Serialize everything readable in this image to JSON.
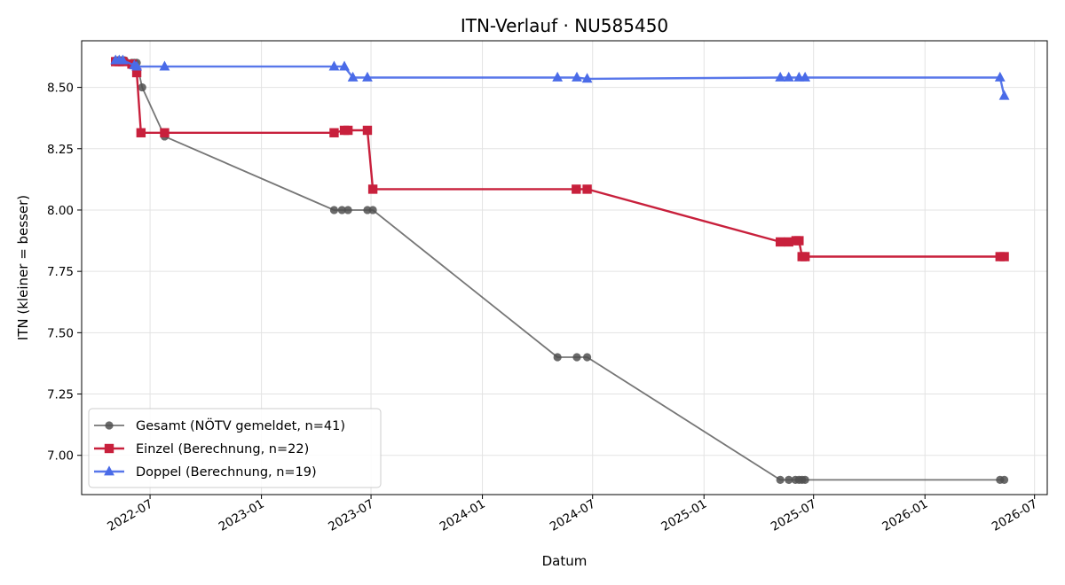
{
  "chart_data": {
    "type": "line",
    "title": "ITN-Verlauf · NU585450",
    "xlabel": "Datum",
    "ylabel": "ITN  (kleiner = besser)",
    "x_scale": "date",
    "xlim": [
      "2022-03-10",
      "2026-07-22"
    ],
    "ylim": [
      6.84,
      8.69
    ],
    "x_ticks": [
      {
        "date": "2022-07-01",
        "label": "2022-07"
      },
      {
        "date": "2023-01-01",
        "label": "2023-01"
      },
      {
        "date": "2023-07-01",
        "label": "2023-07"
      },
      {
        "date": "2024-01-01",
        "label": "2024-01"
      },
      {
        "date": "2024-07-01",
        "label": "2024-07"
      },
      {
        "date": "2025-01-01",
        "label": "2025-01"
      },
      {
        "date": "2025-07-01",
        "label": "2025-07"
      },
      {
        "date": "2026-01-01",
        "label": "2026-01"
      },
      {
        "date": "2026-07-01",
        "label": "2026-07"
      }
    ],
    "y_ticks": [
      {
        "value": 7.0,
        "label": "7.00"
      },
      {
        "value": 7.25,
        "label": "7.25"
      },
      {
        "value": 7.5,
        "label": "7.50"
      },
      {
        "value": 7.75,
        "label": "7.75"
      },
      {
        "value": 8.0,
        "label": "8.00"
      },
      {
        "value": 8.25,
        "label": "8.25"
      },
      {
        "value": 8.5,
        "label": "8.50"
      }
    ],
    "grid": true,
    "legend_position": "lower-left",
    "series": [
      {
        "name": "Gesamt (NÖTV gemeldet, n=41)",
        "color": "#505050",
        "marker": "circle",
        "points": [
          [
            "2022-05-05",
            8.61
          ],
          [
            "2022-05-08",
            8.61
          ],
          [
            "2022-05-11",
            8.61
          ],
          [
            "2022-05-14",
            8.61
          ],
          [
            "2022-05-17",
            8.61
          ],
          [
            "2022-05-20",
            8.61
          ],
          [
            "2022-06-01",
            8.6
          ],
          [
            "2022-06-05",
            8.6
          ],
          [
            "2022-06-09",
            8.6
          ],
          [
            "2022-06-18",
            8.5
          ],
          [
            "2022-07-25",
            8.3
          ],
          [
            "2023-05-01",
            8.0
          ],
          [
            "2023-05-14",
            8.0
          ],
          [
            "2023-05-24",
            8.0
          ],
          [
            "2023-06-25",
            8.0
          ],
          [
            "2023-07-04",
            8.0
          ],
          [
            "2024-05-04",
            7.4
          ],
          [
            "2024-06-05",
            7.4
          ],
          [
            "2024-06-22",
            7.4
          ],
          [
            "2025-05-07",
            6.9
          ],
          [
            "2025-05-21",
            6.9
          ],
          [
            "2025-06-01",
            6.9
          ],
          [
            "2025-06-07",
            6.9
          ],
          [
            "2025-06-12",
            6.9
          ],
          [
            "2025-06-17",
            6.9
          ],
          [
            "2026-05-05",
            6.9
          ],
          [
            "2026-05-12",
            6.9
          ]
        ]
      },
      {
        "name": "Einzel (Berechnung, n=22)",
        "color": "#c8203c",
        "marker": "square",
        "points": [
          [
            "2022-05-05",
            8.605
          ],
          [
            "2022-05-11",
            8.605
          ],
          [
            "2022-05-17",
            8.605
          ],
          [
            "2022-06-01",
            8.595
          ],
          [
            "2022-06-09",
            8.56
          ],
          [
            "2022-06-16",
            8.315
          ],
          [
            "2022-07-25",
            8.315
          ],
          [
            "2023-05-01",
            8.315
          ],
          [
            "2023-05-18",
            8.325
          ],
          [
            "2023-05-24",
            8.325
          ],
          [
            "2023-06-25",
            8.325
          ],
          [
            "2023-07-04",
            8.085
          ],
          [
            "2024-06-04",
            8.085
          ],
          [
            "2024-06-22",
            8.085
          ],
          [
            "2025-05-07",
            7.87
          ],
          [
            "2025-05-21",
            7.87
          ],
          [
            "2025-06-02",
            7.875
          ],
          [
            "2025-06-07",
            7.875
          ],
          [
            "2025-06-12",
            7.81
          ],
          [
            "2025-06-17",
            7.81
          ],
          [
            "2026-05-05",
            7.81
          ],
          [
            "2026-05-12",
            7.81
          ]
        ]
      },
      {
        "name": "Doppel (Berechnung, n=19)",
        "color": "#4a6be8",
        "marker": "triangle",
        "points": [
          [
            "2022-05-05",
            8.61
          ],
          [
            "2022-05-11",
            8.61
          ],
          [
            "2022-05-17",
            8.61
          ],
          [
            "2022-06-05",
            8.59
          ],
          [
            "2022-06-09",
            8.585
          ],
          [
            "2022-07-25",
            8.585
          ],
          [
            "2023-05-01",
            8.585
          ],
          [
            "2023-05-18",
            8.585
          ],
          [
            "2023-06-01",
            8.54
          ],
          [
            "2023-06-25",
            8.54
          ],
          [
            "2024-05-04",
            8.54
          ],
          [
            "2024-06-05",
            8.54
          ],
          [
            "2024-06-22",
            8.535
          ],
          [
            "2025-05-07",
            8.54
          ],
          [
            "2025-05-21",
            8.54
          ],
          [
            "2025-06-07",
            8.54
          ],
          [
            "2025-06-17",
            8.54
          ],
          [
            "2026-05-05",
            8.54
          ],
          [
            "2026-05-12",
            8.465
          ]
        ]
      }
    ]
  }
}
